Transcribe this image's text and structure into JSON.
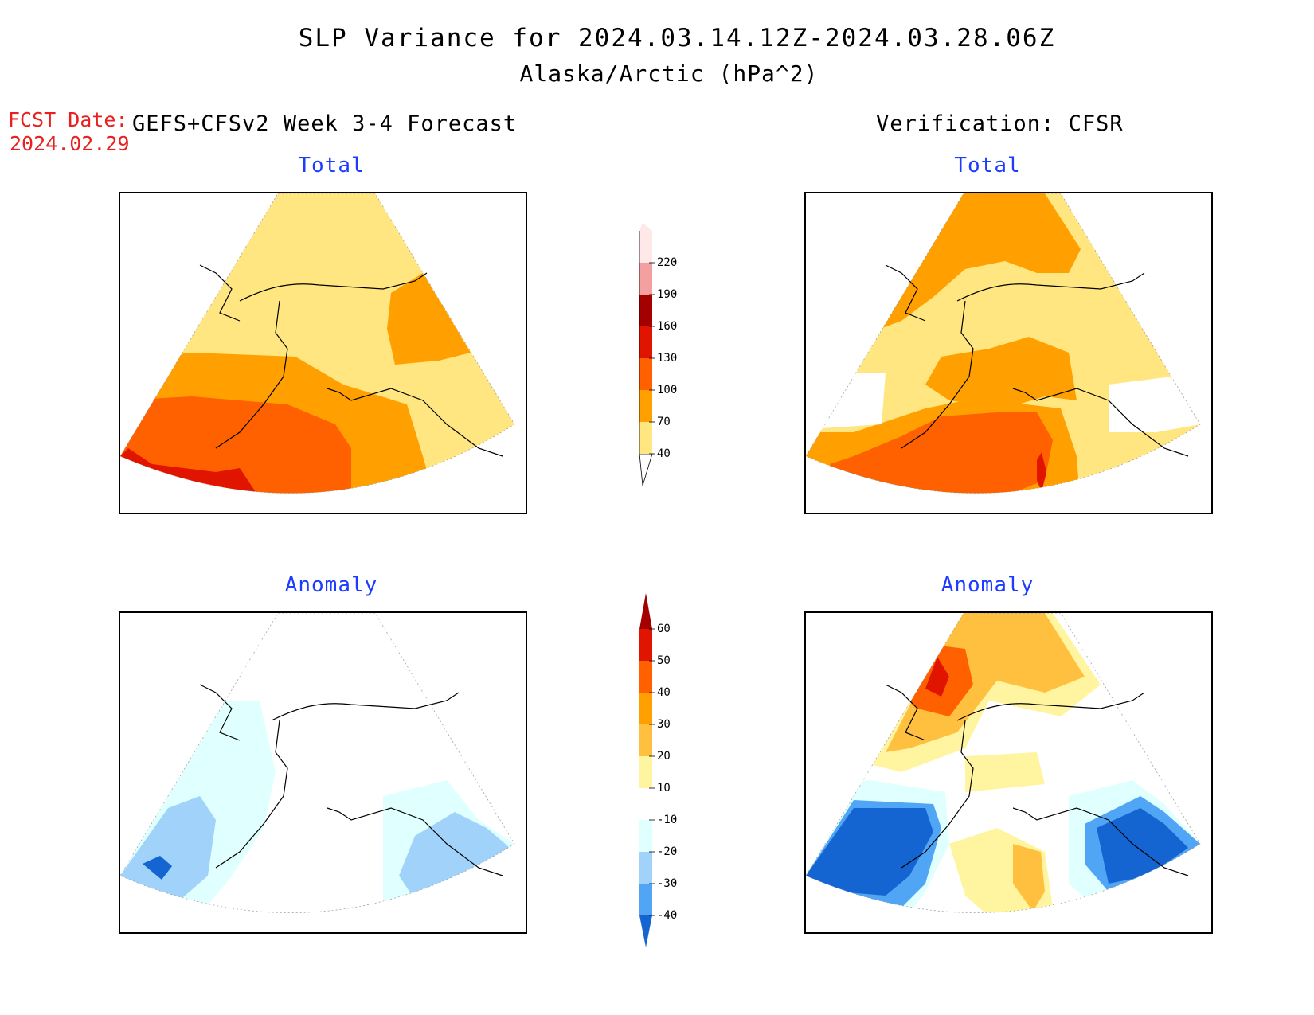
{
  "header": {
    "title": "SLP Variance for 2024.03.14.12Z-2024.03.28.06Z",
    "subtitle": "Alaska/Arctic (hPa^2)",
    "fcst_label": "FCST Date:",
    "fcst_date": "2024.02.29",
    "left_heading": "GEFS+CFSv2 Week 3-4 Forecast",
    "right_heading": "Verification: CFSR"
  },
  "panels": {
    "fcst_total_title": "Total",
    "fcst_anom_title": "Anomaly",
    "verif_total_title": "Total",
    "verif_anom_title": "Anomaly"
  },
  "chart_data": [
    {
      "type": "heatmap",
      "name": "Forecast Total",
      "title": "Total",
      "colorbar": {
        "levels": [
          "40",
          "70",
          "100",
          "130",
          "160",
          "190",
          "220"
        ],
        "colors": [
          "#ffe680",
          "#ffa000",
          "#ff6000",
          "#e11400",
          "#a50000",
          "#f4a0a0",
          "#ffe8e8"
        ]
      },
      "field_description": "values 40-70 over north and Alaska interior, 70-100 over Gulf of Alaska and NW Canada, 100-130 over Bering Sea / Aleutians, 130-160 south of Aleutians"
    },
    {
      "type": "heatmap",
      "name": "Verification Total",
      "title": "Total",
      "colorbar": "shared"
    },
    {
      "type": "heatmap",
      "name": "Forecast Anomaly",
      "title": "Anomaly",
      "colorbar": {
        "levels": [
          "60",
          "50",
          "40",
          "30",
          "20",
          "10",
          "-10",
          "-20",
          "-30",
          "-40"
        ],
        "colors": [
          "#a50000",
          "#e11400",
          "#ff6000",
          "#ffa000",
          "#ffc040",
          "#fff5a0",
          "#ffffff",
          "#e0ffff",
          "#a0d2fa",
          "#50a5f5",
          "#1464d2"
        ]
      }
    },
    {
      "type": "heatmap",
      "name": "Verification Anomaly",
      "title": "Anomaly",
      "colorbar": "shared"
    }
  ]
}
